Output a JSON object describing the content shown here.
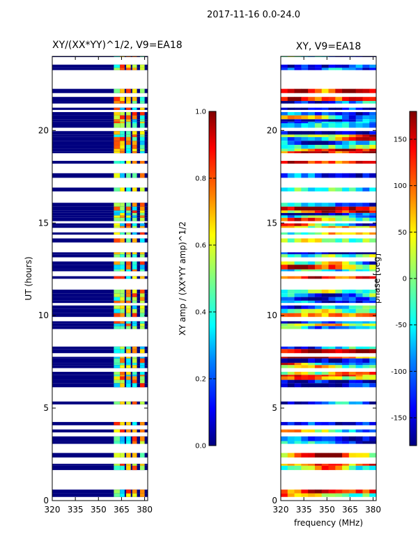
{
  "chart_data": [
    {
      "type": "heatmap",
      "title": "XY/(XX*YY)^1/2, V9=EA18",
      "suptitle": "2017-11-16 0.0-24.0",
      "xlabel": "",
      "ylabel": "UT (hours)",
      "xlim": [
        320,
        382
      ],
      "ylim": [
        0,
        24
      ],
      "xticks": [
        320,
        335,
        350,
        365,
        380
      ],
      "yticks": [
        0,
        5,
        10,
        15,
        20
      ],
      "colorbar": {
        "label": "XY amp / (XX*YY amp)^1/2",
        "range": [
          0.0,
          1.0
        ],
        "ticks": [
          "0.0",
          "0.2",
          "0.4",
          "0.6",
          "0.8",
          "1.0"
        ]
      },
      "colormap": [
        "#00007f",
        "#0000ff",
        "#0080ff",
        "#00ffff",
        "#80ff80",
        "#ffff00",
        "#ff8000",
        "#ff0000",
        "#7f0000"
      ],
      "flagged_time_ranges": [
        [
          0.4,
          0.6
        ],
        [
          0.7,
          1.3
        ],
        [
          1.45,
          1.55
        ],
        [
          6.8,
          6.95
        ],
        [
          7.5,
          7.55
        ],
        [
          8.2,
          8.7
        ],
        [
          8.85,
          9.2
        ],
        [
          13.7,
          13.8
        ],
        [
          16.4,
          16.5
        ],
        [
          18.6,
          18.7
        ],
        [
          22.4,
          23.0
        ]
      ],
      "bright_channel_bands_mhz": [
        [
          360,
          364
        ],
        [
          364,
          367
        ],
        [
          368,
          371
        ],
        [
          372,
          375
        ],
        [
          377,
          380
        ]
      ]
    },
    {
      "type": "heatmap",
      "title": "XY, V9=EA18",
      "xlabel": "frequency (MHz)",
      "ylabel": "",
      "xlim": [
        320,
        382
      ],
      "ylim": [
        0,
        24
      ],
      "xticks": [
        320,
        335,
        350,
        365,
        380
      ],
      "yticks": [
        0,
        5,
        10,
        15,
        20
      ],
      "colorbar": {
        "label": "phase [deg]",
        "range": [
          -180,
          180
        ],
        "ticks": [
          "-150",
          "-100",
          "-50",
          "0",
          "50",
          "100",
          "150"
        ]
      }
    }
  ]
}
